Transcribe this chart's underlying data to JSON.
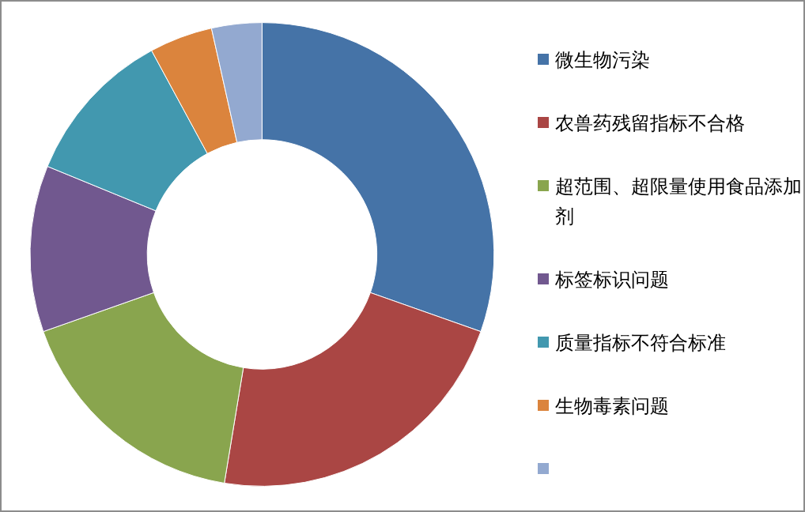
{
  "chart_data": {
    "type": "donut",
    "categories": [
      "微生物污染",
      "农兽药残留指标不合格",
      "超范围、超限量使用食品添加剂",
      "标签标识问题",
      "质量指标不符合标准",
      "生物毒素问题",
      null
    ],
    "values": [
      30.4,
      22.2,
      17.0,
      11.6,
      10.9,
      4.4,
      3.5
    ],
    "colors": [
      "#4573a7",
      "#aa4644",
      "#89a54e",
      "#71588f",
      "#4298af",
      "#db843d",
      "#93a9d0"
    ],
    "legend": "right"
  }
}
